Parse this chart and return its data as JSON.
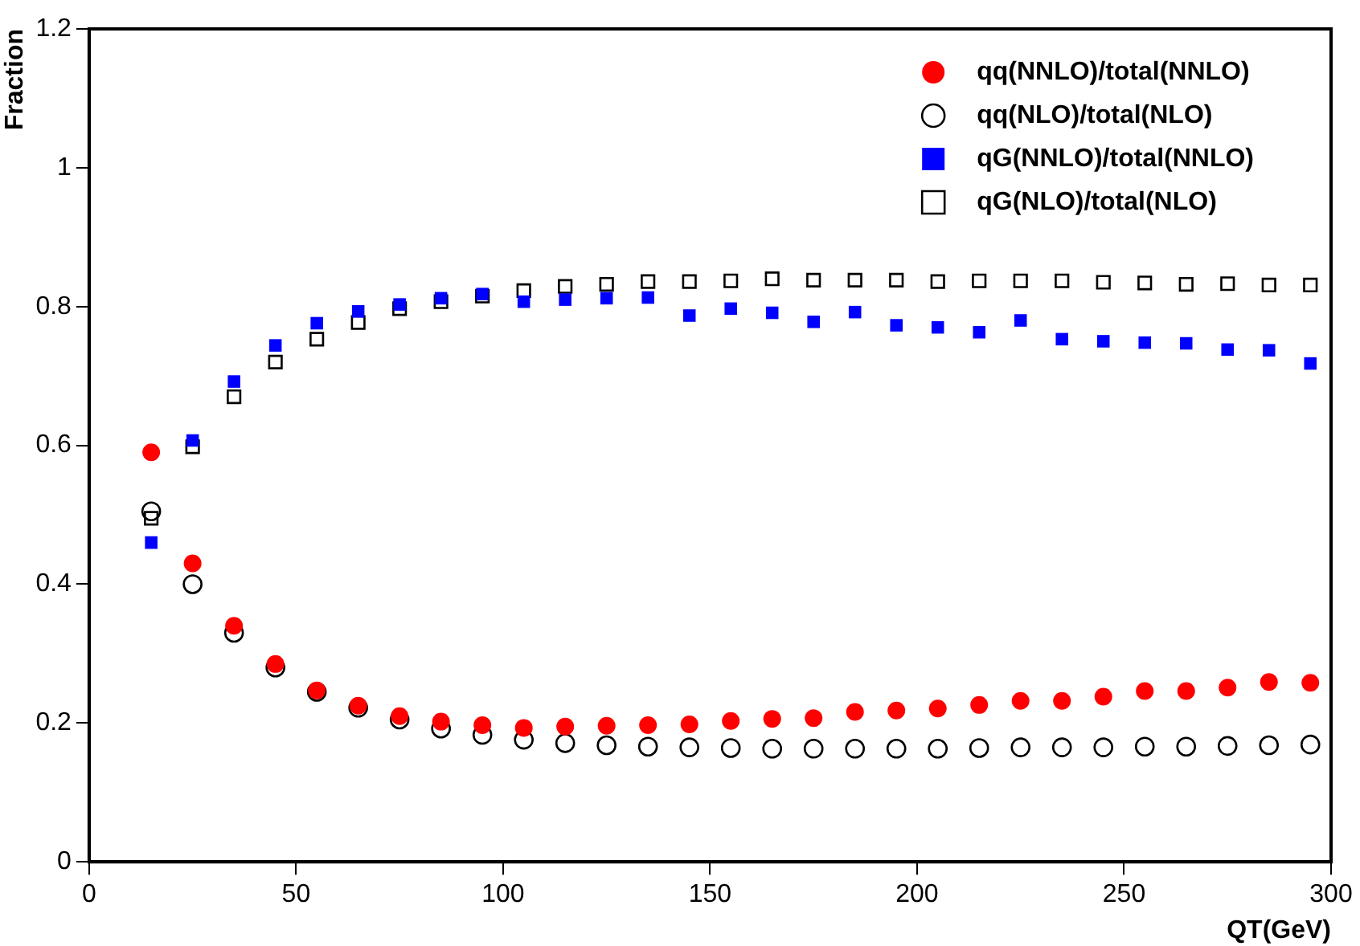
{
  "chart_data": {
    "type": "scatter",
    "xlabel": "QT(GeV)",
    "ylabel": "Fraction",
    "x": [
      15,
      25,
      35,
      45,
      55,
      65,
      75,
      85,
      95,
      105,
      115,
      125,
      135,
      145,
      155,
      165,
      175,
      185,
      195,
      205,
      215,
      225,
      235,
      245,
      255,
      265,
      275,
      285,
      295
    ],
    "series": [
      {
        "name": "qq(NNLO)/total(NNLO)",
        "color": "#ff0000",
        "marker": "circle",
        "values": [
          0.59,
          0.43,
          0.34,
          0.285,
          0.247,
          0.225,
          0.21,
          0.202,
          0.197,
          0.193,
          0.195,
          0.196,
          0.197,
          0.198,
          0.203,
          0.206,
          0.207,
          0.216,
          0.218,
          0.221,
          0.226,
          0.232,
          0.232,
          0.238,
          0.246,
          0.246,
          0.251,
          0.259,
          0.258
        ]
      },
      {
        "name": "qq(NLO)/total(NLO)",
        "color": "#000000",
        "marker": "circle",
        "values": [
          0.505,
          0.4,
          0.33,
          0.28,
          0.245,
          0.222,
          0.205,
          0.192,
          0.183,
          0.176,
          0.171,
          0.168,
          0.166,
          0.165,
          0.164,
          0.163,
          0.163,
          0.163,
          0.163,
          0.163,
          0.164,
          0.165,
          0.165,
          0.165,
          0.166,
          0.166,
          0.167,
          0.168,
          0.169
        ]
      },
      {
        "name": "qG(NNLO)/total(NNLO)",
        "color": "#0000ff",
        "marker": "square",
        "values": [
          0.46,
          0.607,
          0.692,
          0.744,
          0.776,
          0.793,
          0.803,
          0.812,
          0.818,
          0.807,
          0.81,
          0.812,
          0.813,
          0.787,
          0.797,
          0.791,
          0.778,
          0.792,
          0.773,
          0.77,
          0.763,
          0.78,
          0.753,
          0.75,
          0.748,
          0.747,
          0.738,
          0.737,
          0.718
        ]
      },
      {
        "name": "qG(NLO)/total(NLO)",
        "color": "#000000",
        "marker": "square",
        "values": [
          0.495,
          0.598,
          0.67,
          0.72,
          0.753,
          0.777,
          0.797,
          0.807,
          0.815,
          0.823,
          0.829,
          0.832,
          0.836,
          0.836,
          0.837,
          0.84,
          0.838,
          0.838,
          0.838,
          0.836,
          0.837,
          0.837,
          0.837,
          0.835,
          0.834,
          0.832,
          0.833,
          0.831,
          0.831
        ]
      }
    ],
    "xlim": [
      0,
      300
    ],
    "xticks": [
      0,
      50,
      100,
      150,
      200,
      250,
      300
    ],
    "ylim": [
      0,
      1.2
    ],
    "yticks": [
      0,
      0.2,
      0.4,
      0.6,
      0.8,
      1,
      1.2
    ],
    "grid": false,
    "legend": "top right"
  }
}
